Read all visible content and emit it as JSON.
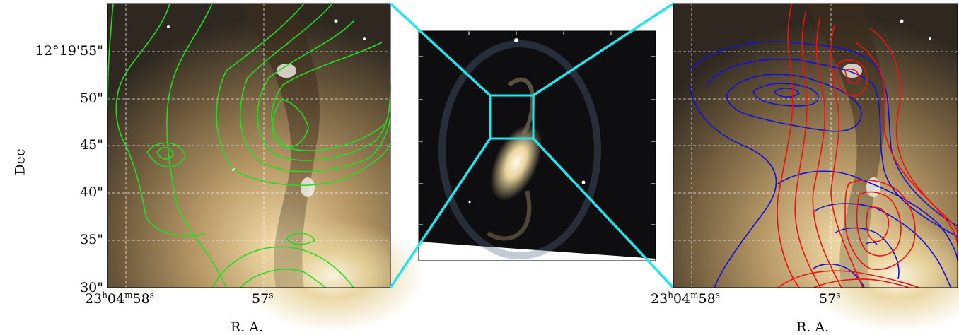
{
  "left_panel": {
    "dec_ticks": [
      "12°19'55\"",
      "50\"",
      "45\"",
      "40\"",
      "35\"",
      "30\""
    ],
    "ra_ticks": [
      {
        "h": "23",
        "hu": "h",
        "m": "04",
        "mu": "m",
        "s": "58",
        "su": "s"
      },
      {
        "s": "57",
        "su": "s"
      }
    ],
    "xlabel": "R. A.",
    "ylabel": "Dec",
    "contour_color": "#22dd22"
  },
  "center_panel": {
    "description_box_color": "#22e5ee"
  },
  "right_panel": {
    "ra_ticks": [
      {
        "h": "23",
        "hu": "h",
        "m": "04",
        "mu": "m",
        "s": "58",
        "su": "s"
      },
      {
        "s": "57",
        "su": "s"
      }
    ],
    "xlabel": "R. A.",
    "contour_colors": [
      "#ee1111",
      "#1111dd"
    ]
  }
}
